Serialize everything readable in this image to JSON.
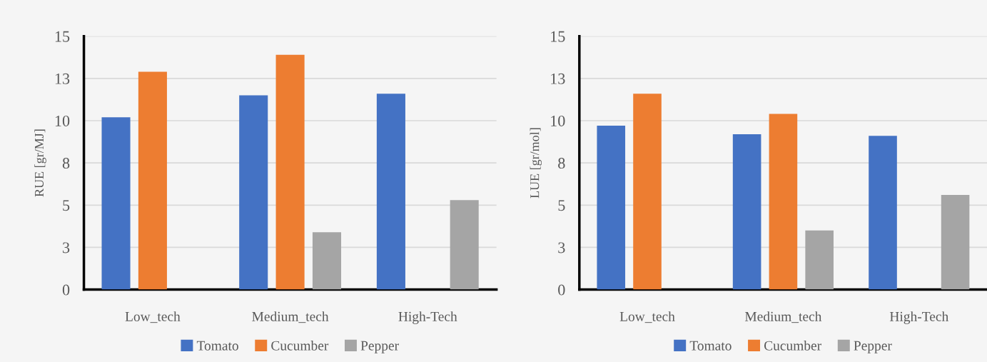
{
  "chart_data": [
    {
      "type": "bar",
      "ylabel": "RUE [gr/MJ]",
      "categories": [
        "Low_tech",
        "Medium_tech",
        "High-Tech"
      ],
      "series": [
        {
          "name": "Tomato",
          "color": "#4472c4",
          "values": [
            10.2,
            11.5,
            11.6
          ]
        },
        {
          "name": "Cucumber",
          "color": "#ed7d31",
          "values": [
            12.9,
            13.9,
            null
          ]
        },
        {
          "name": "Pepper",
          "color": "#a5a5a5",
          "values": [
            null,
            3.4,
            5.3
          ]
        }
      ],
      "ylim": [
        0,
        15
      ],
      "yticks": [
        0,
        {
          "value": 2.5,
          "label": "3"
        },
        5,
        {
          "value": 7.5,
          "label": "8"
        },
        10,
        {
          "value": 12.5,
          "label": "13"
        },
        15
      ],
      "grid": "y",
      "legend": "bottom"
    },
    {
      "type": "bar",
      "ylabel": "LUE [gr/mol]",
      "categories": [
        "Low_tech",
        "Medium_tech",
        "High-Tech"
      ],
      "series": [
        {
          "name": "Tomato",
          "color": "#4472c4",
          "values": [
            9.7,
            9.2,
            9.1
          ]
        },
        {
          "name": "Cucumber",
          "color": "#ed7d31",
          "values": [
            11.6,
            10.4,
            null
          ]
        },
        {
          "name": "Pepper",
          "color": "#a5a5a5",
          "values": [
            null,
            3.5,
            5.6
          ]
        }
      ],
      "ylim": [
        0,
        15
      ],
      "yticks": [
        0,
        {
          "value": 2.5,
          "label": "3"
        },
        5,
        {
          "value": 7.5,
          "label": "8"
        },
        10,
        {
          "value": 12.5,
          "label": "13"
        },
        15
      ],
      "grid": "y",
      "legend": "bottom"
    }
  ]
}
